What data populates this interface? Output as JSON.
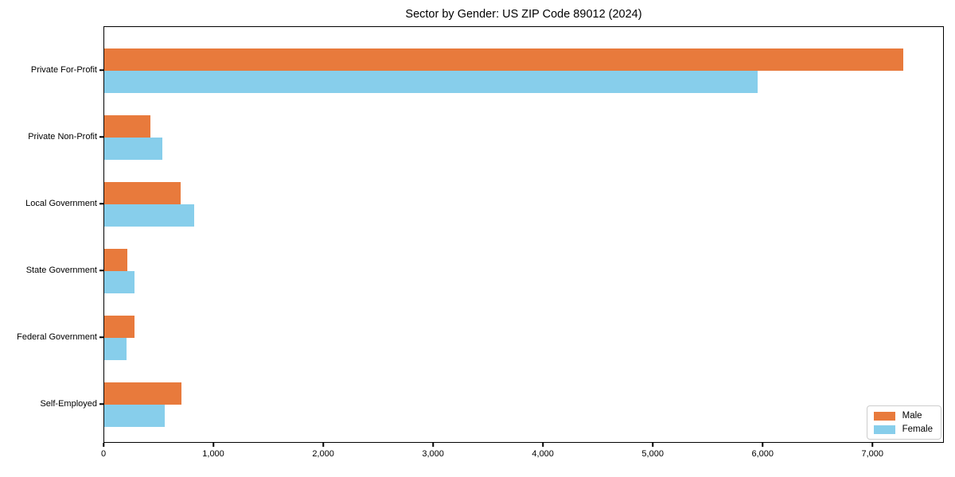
{
  "title": "Sector by Gender: US ZIP Code 89012 (2024)",
  "chart_data": {
    "type": "bar",
    "orientation": "horizontal",
    "title": "Sector by Gender: US ZIP Code 89012 (2024)",
    "categories": [
      "Private For-Profit",
      "Private Non-Profit",
      "Local Government",
      "State Government",
      "Federal Government",
      "Self-Employed"
    ],
    "series": [
      {
        "name": "Male",
        "color": "#E87A3C",
        "values": [
          7270,
          420,
          695,
          210,
          275,
          705
        ]
      },
      {
        "name": "Female",
        "color": "#87CEEB",
        "values": [
          5950,
          530,
          820,
          275,
          200,
          550
        ]
      }
    ],
    "xlabel": "",
    "ylabel": "",
    "xlim": [
      0,
      7650
    ],
    "x_ticks": [
      0,
      1000,
      2000,
      3000,
      4000,
      5000,
      6000,
      7000
    ],
    "x_tick_labels": [
      "0",
      "1,000",
      "2,000",
      "3,000",
      "4,000",
      "5,000",
      "6,000",
      "7,000"
    ],
    "grid": false,
    "legend_position": "lower right",
    "legend_entries": [
      "Male",
      "Female"
    ]
  }
}
